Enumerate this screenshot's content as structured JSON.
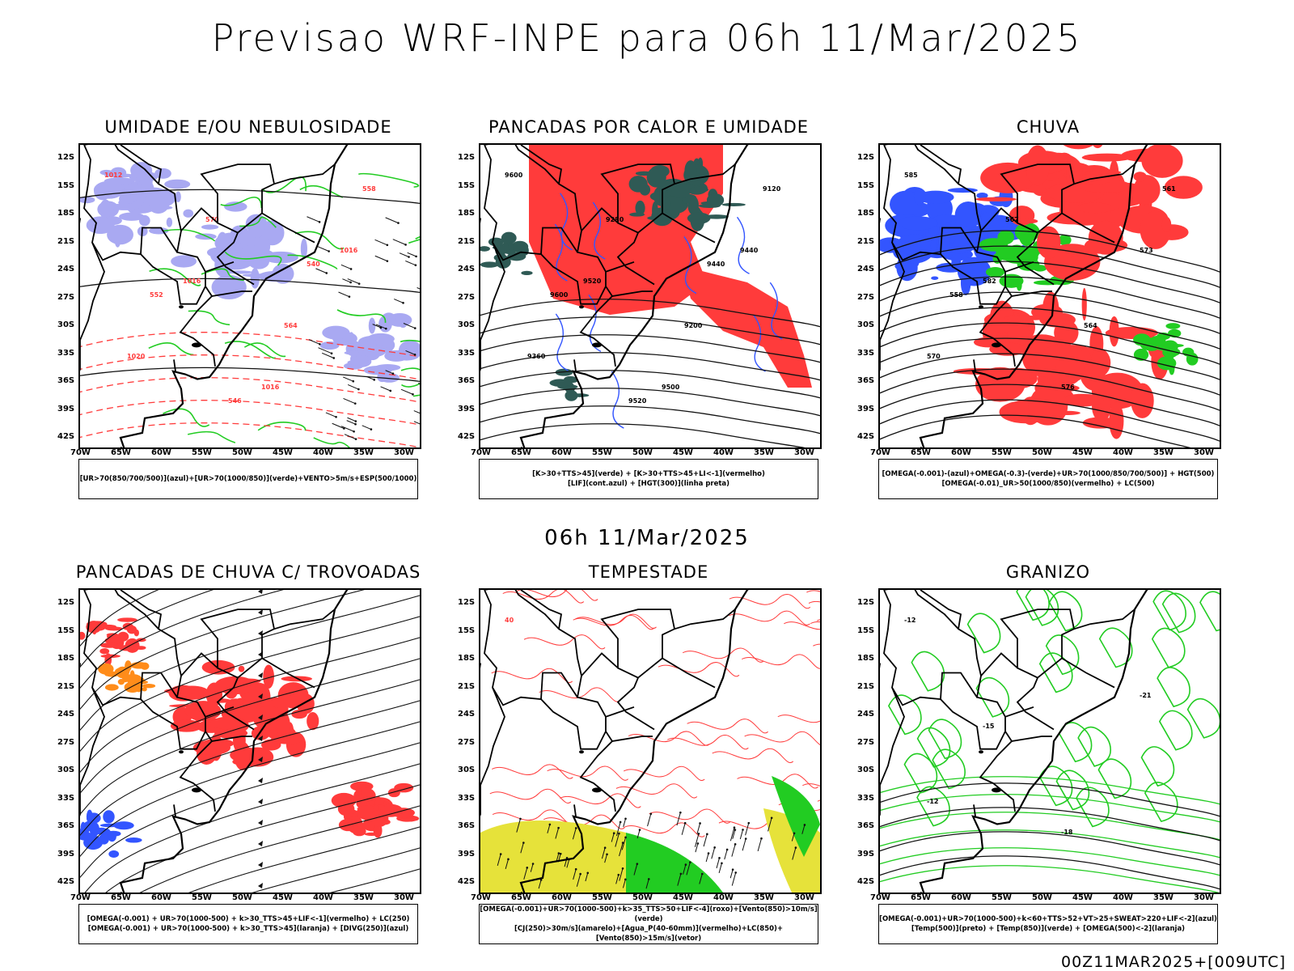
{
  "header": {
    "title": "Previsao WRF-INPE  para 06h 11/Mar/2025",
    "mid_title": "06h 11/Mar/2025",
    "footer": "00Z11MAR2025+[009UTC]"
  },
  "axes": {
    "lat_labels": [
      "12S",
      "15S",
      "18S",
      "21S",
      "24S",
      "27S",
      "30S",
      "33S",
      "36S",
      "39S",
      "42S"
    ],
    "lon_labels": [
      "70W",
      "65W",
      "60W",
      "55W",
      "50W",
      "45W",
      "40W",
      "35W",
      "30W"
    ]
  },
  "colors": {
    "red": "#ff3b3b",
    "green": "#22cc22",
    "blue": "#3355ff",
    "lavender": "#a9a9f2",
    "dark_teal": "#2f5a55",
    "yellow": "#e6e23a",
    "orange": "#ff8c1a"
  },
  "panels": [
    {
      "title": "UMIDADE E/OU NEBULOSIDADE",
      "legend": [
        "[UR>70(850/700/500)](azul)+[UR>70(1000/850)](verde)+VENTO>5m/s+ESP(500/1000)"
      ],
      "contour_labels": [
        "1012",
        "1016",
        "1016",
        "1016",
        "1020",
        "570",
        "564",
        "558",
        "552",
        "546",
        "540"
      ]
    },
    {
      "title": "PANCADAS POR CALOR E UMIDADE",
      "legend": [
        "[K>30+TTS>45](verde) + [K>30+TTS>45+LI<-1](vermelho)",
        "[LIF](cont.azul) + [HGT(300)](linha preta)"
      ],
      "contour_labels": [
        "9600",
        "9520",
        "9500",
        "9440",
        "9360",
        "9280",
        "9200",
        "9120",
        "9600",
        "9520",
        "9440"
      ]
    },
    {
      "title": "CHUVA",
      "legend": [
        "[OMEGA(-0.001)-(azul)+OMEGA(-0.3)-(verde)+UR>70(1000/850/700/500)] + HGT(500)",
        "[OMEGA(-0.01)_UR>50(1000/850)(vermelho) + LC(500)"
      ],
      "contour_labels": [
        "585",
        "582",
        "576",
        "573",
        "570",
        "567",
        "564",
        "561",
        "558"
      ]
    },
    {
      "title": "PANCADAS DE CHUVA C/ TROVOADAS",
      "legend": [
        "[OMEGA(-0.001) + UR>70(1000-500) + k>30_TTS>45+LIF<-1](vermelho) + LC(250)",
        "[OMEGA(-0.001) + UR>70(1000-500) + k>30_TTS>45](laranja) + [DIVG(250)](azul)"
      ],
      "contour_labels": []
    },
    {
      "title": "TEMPESTADE",
      "legend": [
        "[OMEGA(-0.001)+UR>70(1000-500)+k>35_TTS>50+LIF<-4](roxo)+[Vento(850)>10m/s](verde)",
        "[CJ(250)>30m/s](amarelo)+[Agua_P(40-60mm)](vermelho)+LC(850)+[Vento(850)>15m/s](vetor)"
      ],
      "contour_labels": [
        "40"
      ]
    },
    {
      "title": "GRANIZO",
      "legend": [
        "[OMEGA(-0.001)+UR>70(1000-500)+k<60+TTS>52+VT>25+SWEAT>220+LIF<-2](azul)",
        "[Temp(500)](preto) + [Temp(850)](verde) + [OMEGA(500)<-2](laranja)"
      ],
      "contour_labels": [
        "-12",
        "-15",
        "-18",
        "-21",
        "-12"
      ]
    }
  ]
}
